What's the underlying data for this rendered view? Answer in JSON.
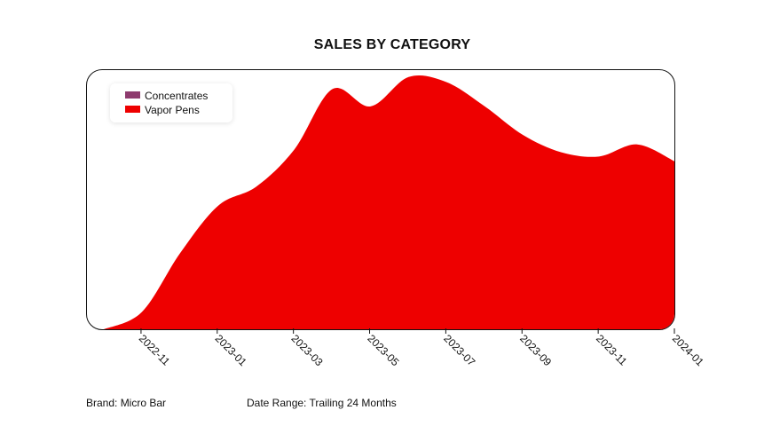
{
  "title": "SALES BY CATEGORY",
  "legend": {
    "items": [
      {
        "label": "Concentrates",
        "color": "#8e3b6e"
      },
      {
        "label": "Vapor Pens",
        "color": "#ee0000"
      }
    ]
  },
  "footer": {
    "brand": "Brand: Micro Bar",
    "date_range": "Date Range: Trailing 24 Months"
  },
  "chart_data": {
    "type": "area",
    "title": "SALES BY CATEGORY",
    "xlabel": "",
    "ylabel": "",
    "x_ticks": [
      "2022-11",
      "2023-01",
      "2023-03",
      "2023-05",
      "2023-07",
      "2023-09",
      "2023-11",
      "2024-01"
    ],
    "x": [
      "2022-10",
      "2022-11",
      "2022-12",
      "2023-01",
      "2023-02",
      "2023-03",
      "2023-04",
      "2023-05",
      "2023-06",
      "2023-07",
      "2023-08",
      "2023-09",
      "2023-10",
      "2023-11",
      "2023-12",
      "2024-01"
    ],
    "series": [
      {
        "name": "Concentrates",
        "color": "#8e3b6e",
        "values": [
          0,
          0,
          0,
          0,
          0,
          0,
          0,
          0,
          0,
          0,
          0,
          0,
          0,
          0,
          0,
          0
        ]
      },
      {
        "name": "Vapor Pens",
        "color": "#ee0000",
        "values": [
          0,
          20,
          88,
          143,
          165,
          208,
          278,
          258,
          292,
          286,
          258,
          225,
          205,
          200,
          214,
          194
        ]
      }
    ],
    "ylim": [
      0,
      300
    ],
    "grid": false,
    "legend_position": "top-left"
  }
}
